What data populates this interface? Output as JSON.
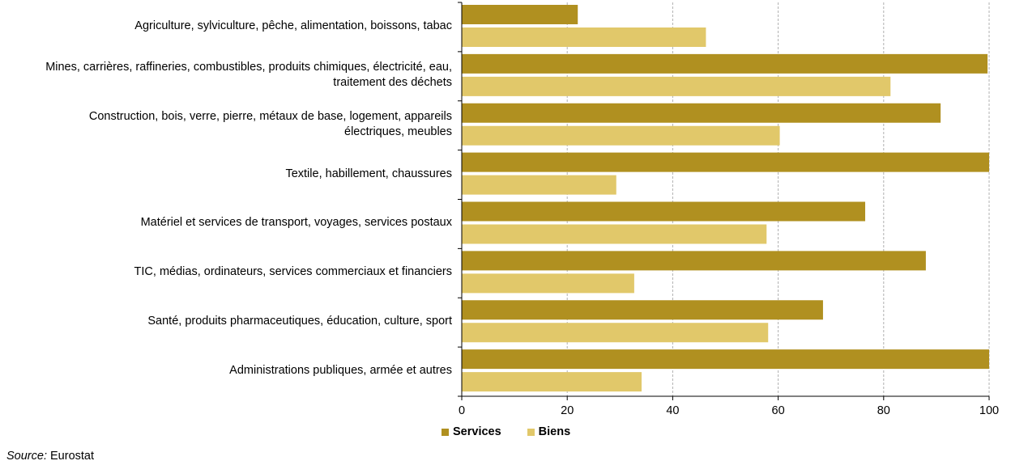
{
  "chart_data": {
    "type": "bar",
    "orientation": "horizontal",
    "categories": [
      [
        "Agriculture, sylviculture, pêche, alimentation, boissons, tabac"
      ],
      [
        "Mines, carrières, raffineries, combustibles, produits chimiques, électricité, eau,",
        "traitement des déchets"
      ],
      [
        "Construction, bois, verre, pierre, métaux de base, logement, appareils",
        "électriques, meubles"
      ],
      [
        "Textile, habillement, chaussures"
      ],
      [
        "Matériel et services de transport, voyages, services postaux"
      ],
      [
        "TIC, médias, ordinateurs, services commerciaux et financiers"
      ],
      [
        "Santé, produits pharmaceutiques, éducation, culture, sport"
      ],
      [
        "Administrations publiques, armée et autres"
      ]
    ],
    "series": [
      {
        "name": "Services",
        "color": "#b09020",
        "values": [
          22,
          99.7,
          90.8,
          100,
          76.5,
          88,
          68.5,
          100
        ]
      },
      {
        "name": "Biens",
        "color": "#e1c86a",
        "values": [
          46.3,
          81.3,
          60.3,
          29.3,
          57.8,
          32.7,
          58.1,
          34.1
        ]
      }
    ],
    "xlim": [
      0,
      100
    ],
    "xticks": [
      0,
      20,
      40,
      60,
      80,
      100
    ],
    "grid": "vertical dashed",
    "legend": "bottom"
  },
  "source": {
    "label": "Source:",
    "text": " Eurostat"
  }
}
